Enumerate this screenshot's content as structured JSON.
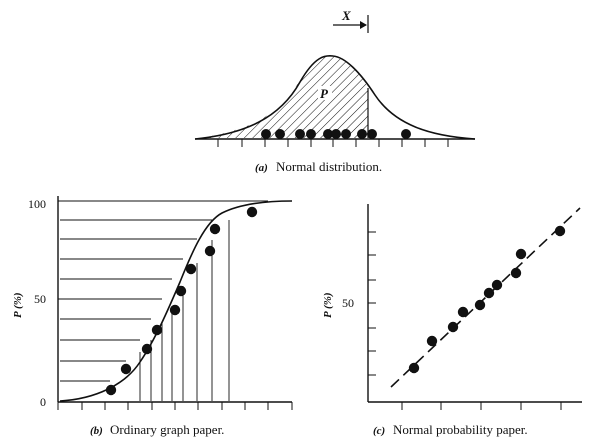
{
  "panel_a": {
    "interval_label": "X",
    "area_label": "P",
    "caption_letter": "(a)",
    "caption_text": "Normal distribution."
  },
  "panel_b": {
    "y_axis_label": "P (%)",
    "y_ticks": [
      "0",
      "50",
      "100"
    ],
    "caption_letter": "(b)",
    "caption_text": "Ordinary graph paper."
  },
  "panel_c": {
    "y_axis_label": "P (%)",
    "y_tick": "50",
    "caption_letter": "(c)",
    "caption_text": "Normal probability paper."
  }
}
